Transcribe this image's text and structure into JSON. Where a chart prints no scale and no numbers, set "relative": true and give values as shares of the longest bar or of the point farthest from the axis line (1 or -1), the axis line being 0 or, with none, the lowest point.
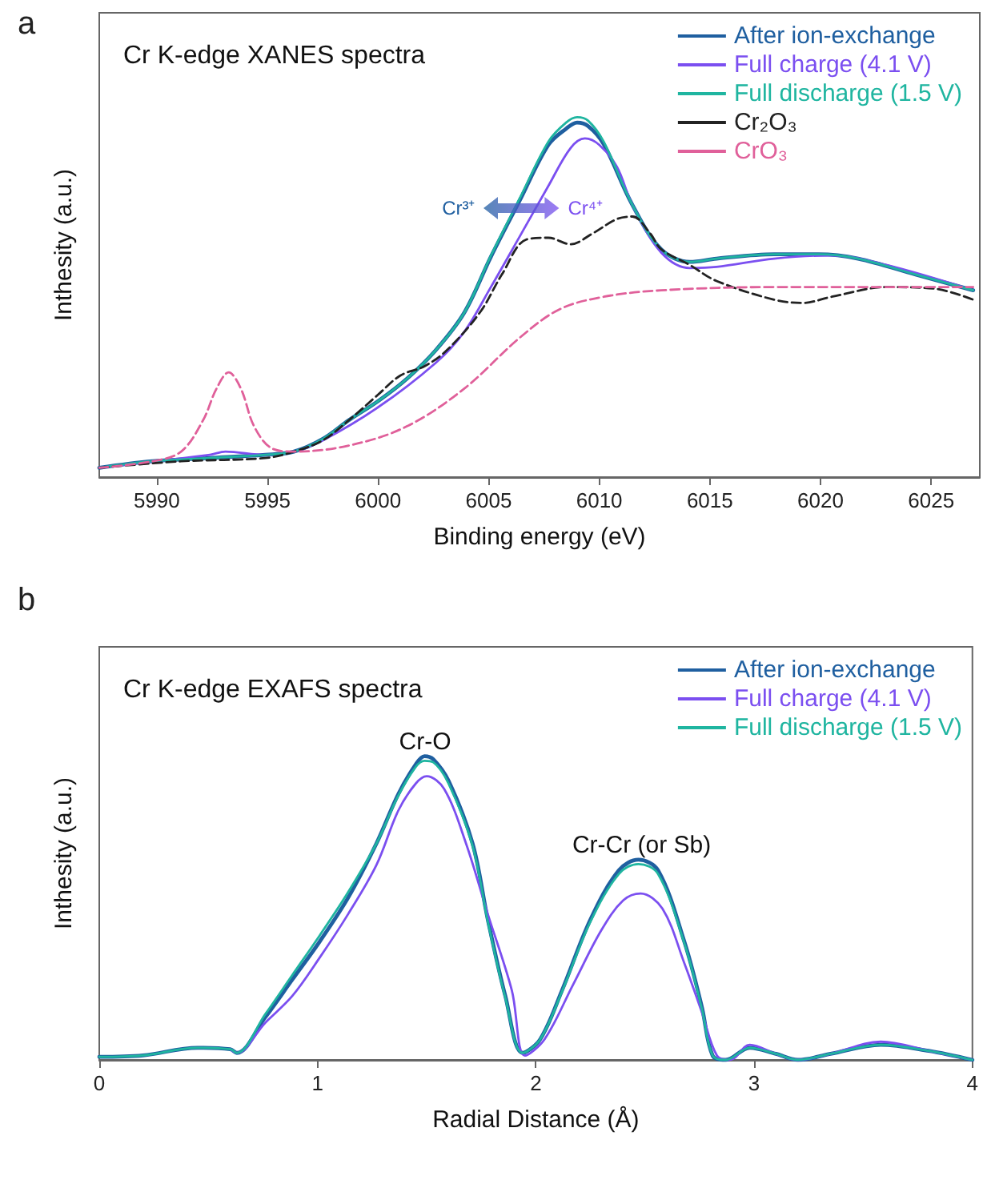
{
  "chart_data": [
    {
      "type": "line",
      "title": "a",
      "subtitle": "Cr K-edge XANES spectra",
      "xlabel": "Binding energy (eV)",
      "ylabel": "Inthesity (a.u.)",
      "relative": true,
      "legend": "top right",
      "line_style": "solid",
      "xlim": [
        5987.4,
        6027.2
      ],
      "xticks": [
        5990,
        5995,
        6000,
        6005,
        6010,
        6015,
        6020,
        6025
      ],
      "annotations": [
        "Cr³⁺",
        "Cr⁴⁺"
      ],
      "series": [
        {
          "name": "After ion-exchange",
          "color": "#1f5fa0",
          "x": [
            5987.4,
            5989.8,
            5992.4,
            5994.9,
            5996.2,
            5997.5,
            5998.7,
            6000.0,
            6001.3,
            6002.6,
            6003.9,
            6005.1,
            6006.4,
            6007.7,
            6008.5,
            6009.0,
            6009.5,
            6010.2,
            6011.5,
            6012.8,
            6014.1,
            6015.3,
            6017.9,
            6019.9,
            6021.7,
            6024.3,
            6026.9
          ],
          "values": [
            0.026,
            0.044,
            0.053,
            0.062,
            0.071,
            0.106,
            0.159,
            0.211,
            0.273,
            0.352,
            0.457,
            0.612,
            0.768,
            0.923,
            0.968,
            0.985,
            0.975,
            0.925,
            0.756,
            0.633,
            0.598,
            0.607,
            0.619,
            0.619,
            0.607,
            0.563,
            0.519
          ]
        },
        {
          "name": "Full charge (4.1 V)",
          "color": "#7b4ff0",
          "x": [
            5987.4,
            5992.4,
            5993.1,
            5994.9,
            5996.2,
            5997.5,
            6000.0,
            6002.6,
            6003.9,
            6005.1,
            6006.4,
            6007.7,
            6008.7,
            6009.35,
            6010.0,
            6010.8,
            6011.5,
            6012.8,
            6014.1,
            6015.3,
            6017.9,
            6020.5,
            6023.0,
            6026.9
          ],
          "values": [
            0.026,
            0.062,
            0.071,
            0.062,
            0.071,
            0.102,
            0.194,
            0.317,
            0.404,
            0.528,
            0.668,
            0.809,
            0.914,
            0.941,
            0.923,
            0.862,
            0.756,
            0.624,
            0.581,
            0.584,
            0.607,
            0.616,
            0.589,
            0.519
          ]
        },
        {
          "name": "Full discharge (1.5 V)",
          "color": "#1fb5a0",
          "x": [
            5987.4,
            5989.8,
            5992.4,
            5994.9,
            5996.2,
            5997.5,
            5998.7,
            6000.0,
            6001.3,
            6002.6,
            6003.9,
            6005.1,
            6006.4,
            6007.7,
            6008.5,
            6009.0,
            6009.5,
            6010.2,
            6011.5,
            6012.8,
            6014.1,
            6015.3,
            6017.9,
            6019.9,
            6021.7,
            6024.3,
            6026.9
          ],
          "values": [
            0.026,
            0.044,
            0.053,
            0.062,
            0.071,
            0.106,
            0.159,
            0.211,
            0.273,
            0.352,
            0.457,
            0.615,
            0.774,
            0.932,
            0.985,
            1.0,
            0.99,
            0.932,
            0.756,
            0.633,
            0.598,
            0.607,
            0.619,
            0.619,
            0.607,
            0.563,
            0.519
          ]
        },
        {
          "name": "Cr₂O₃",
          "color": "#222222",
          "line_style": "dashed",
          "x": [
            5987.4,
            5991.1,
            5994.9,
            5996.2,
            5997.5,
            5998.7,
            6000.0,
            6001.0,
            6002.1,
            6003.1,
            6004.6,
            6005.6,
            6006.7,
            6007.7,
            6008.7,
            6009.7,
            6010.8,
            6011.5,
            6012.3,
            6012.8,
            6014.1,
            6015.3,
            6017.9,
            6019.2,
            6020.5,
            6023.0,
            6025.1,
            6026.9
          ],
          "values": [
            0.026,
            0.044,
            0.053,
            0.071,
            0.102,
            0.159,
            0.229,
            0.282,
            0.308,
            0.352,
            0.457,
            0.563,
            0.66,
            0.665,
            0.647,
            0.677,
            0.717,
            0.724,
            0.677,
            0.633,
            0.589,
            0.545,
            0.493,
            0.484,
            0.501,
            0.528,
            0.524,
            0.493
          ]
        },
        {
          "name": "CrO₃",
          "color": "#e0609a",
          "line_style": "dashed",
          "x": [
            5987.4,
            5989.8,
            5991.1,
            5992.1,
            5992.7,
            5993.25,
            5993.8,
            5994.4,
            5995.2,
            5996.2,
            5998.7,
            6001.3,
            6003.9,
            6006.4,
            6008.2,
            6010.2,
            6012.8,
            6017.9,
            6023.0,
            6026.9
          ],
          "values": [
            0.026,
            0.044,
            0.071,
            0.159,
            0.246,
            0.291,
            0.246,
            0.141,
            0.08,
            0.071,
            0.088,
            0.141,
            0.246,
            0.387,
            0.466,
            0.501,
            0.519,
            0.528,
            0.528,
            0.528
          ]
        }
      ]
    },
    {
      "type": "line",
      "title": "b",
      "subtitle": "Cr K-edge EXAFS spectra",
      "xlabel": "Radial Distance (Å)",
      "ylabel": "Inthesity (a.u.)",
      "relative": true,
      "legend": "top right",
      "line_style": "solid",
      "xlim": [
        0,
        4
      ],
      "xticks": [
        0,
        1,
        2,
        3,
        4
      ],
      "annotations": [
        "Cr-O",
        "Cr-Cr (or Sb)"
      ],
      "series": [
        {
          "name": "After ion-exchange",
          "color": "#1f5fa0",
          "x": [
            0,
            0.2,
            0.45,
            0.6,
            0.63,
            0.76,
            0.885,
            1.01,
            1.14,
            1.27,
            1.37,
            1.45,
            1.49,
            1.53,
            1.6,
            1.71,
            1.78,
            1.86,
            1.94,
            2.02,
            2.12,
            2.25,
            2.38,
            2.47,
            2.56,
            2.68,
            2.76,
            2.81,
            2.87,
            2.98,
            3.1,
            3.2,
            3.35,
            3.58,
            3.8,
            4.0
          ],
          "values": [
            0.01,
            0.015,
            0.04,
            0.035,
            0.023,
            0.14,
            0.265,
            0.39,
            0.534,
            0.713,
            0.875,
            0.973,
            1.0,
            0.99,
            0.919,
            0.713,
            0.462,
            0.211,
            0.023,
            0.068,
            0.229,
            0.462,
            0.624,
            0.659,
            0.624,
            0.39,
            0.176,
            0.014,
            0.0,
            0.04,
            0.02,
            0.0,
            0.02,
            0.05,
            0.03,
            0.0
          ]
        },
        {
          "name": "Full charge (4.1 V)",
          "color": "#7b4ff0",
          "x": [
            0.6,
            0.63,
            0.76,
            0.885,
            1.01,
            1.14,
            1.27,
            1.37,
            1.45,
            1.5,
            1.58,
            1.68,
            1.78,
            1.89,
            1.95,
            2.04,
            2.17,
            2.3,
            2.4,
            2.48,
            2.58,
            2.68,
            2.76,
            2.83,
            2.89,
            2.98,
            3.1,
            3.2,
            3.35,
            3.58,
            3.8,
            4.0
          ],
          "values": [
            0.035,
            0.023,
            0.122,
            0.211,
            0.337,
            0.48,
            0.642,
            0.821,
            0.91,
            0.934,
            0.892,
            0.713,
            0.48,
            0.229,
            0.014,
            0.068,
            0.247,
            0.427,
            0.525,
            0.548,
            0.498,
            0.319,
            0.158,
            0.014,
            0.0,
            0.05,
            0.02,
            0.0,
            0.02,
            0.06,
            0.03,
            0.0
          ]
        },
        {
          "name": "Full discharge (1.5 V)",
          "color": "#1fb5a0",
          "x": [
            0,
            0.2,
            0.45,
            0.6,
            0.63,
            0.76,
            0.885,
            1.01,
            1.14,
            1.27,
            1.37,
            1.45,
            1.49,
            1.53,
            1.6,
            1.71,
            1.78,
            1.86,
            1.94,
            2.02,
            2.12,
            2.25,
            2.38,
            2.47,
            2.56,
            2.68,
            2.76,
            2.81,
            2.87,
            2.98,
            3.1,
            3.2,
            3.35,
            3.58,
            3.8,
            4.0
          ],
          "values": [
            0.01,
            0.015,
            0.04,
            0.035,
            0.023,
            0.15,
            0.28,
            0.41,
            0.552,
            0.713,
            0.87,
            0.965,
            0.985,
            0.98,
            0.91,
            0.705,
            0.455,
            0.205,
            0.023,
            0.068,
            0.225,
            0.455,
            0.612,
            0.645,
            0.612,
            0.385,
            0.17,
            0.014,
            0.0,
            0.04,
            0.02,
            0.0,
            0.02,
            0.05,
            0.03,
            0.0
          ]
        }
      ]
    }
  ]
}
